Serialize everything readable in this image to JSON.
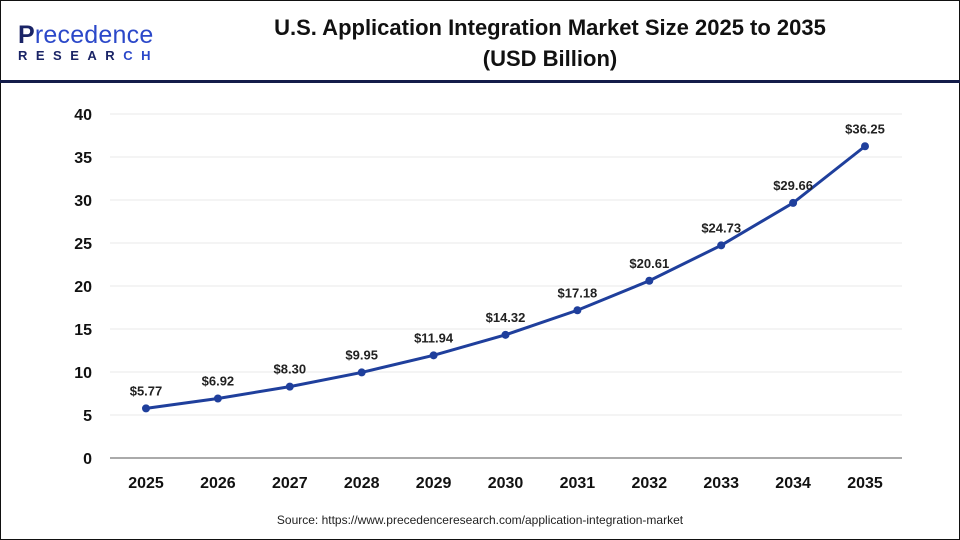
{
  "logo": {
    "brand_first": "P",
    "brand_rest": "recedence",
    "sub_main": "RESEAR",
    "sub_accent": "CH"
  },
  "colors": {
    "line": "#1f3f9c",
    "header_rule": "#141c4a",
    "grid": "#e8e8e8"
  },
  "chart_data": {
    "type": "line",
    "title": "U.S. Application Integration Market Size 2025 to 2035",
    "subtitle": "(USD Billion)",
    "xlabel": "",
    "ylabel": "",
    "categories": [
      "2025",
      "2026",
      "2027",
      "2028",
      "2029",
      "2030",
      "2031",
      "2032",
      "2033",
      "2034",
      "2035"
    ],
    "values": [
      5.77,
      6.92,
      8.3,
      9.95,
      11.94,
      14.32,
      17.18,
      20.61,
      24.73,
      29.66,
      36.25
    ],
    "data_labels": [
      "$5.77",
      "$6.92",
      "$8.30",
      "$9.95",
      "$11.94",
      "$14.32",
      "$17.18",
      "$20.61",
      "$24.73",
      "$29.66",
      "$36.25"
    ],
    "ylim": [
      0,
      40
    ],
    "yticks": [
      "0",
      "5",
      "10",
      "15",
      "20",
      "25",
      "30",
      "35",
      "40"
    ],
    "grid": true,
    "legend": "none"
  },
  "source": "Source: https://www.precedenceresearch.com/application-integration-market"
}
